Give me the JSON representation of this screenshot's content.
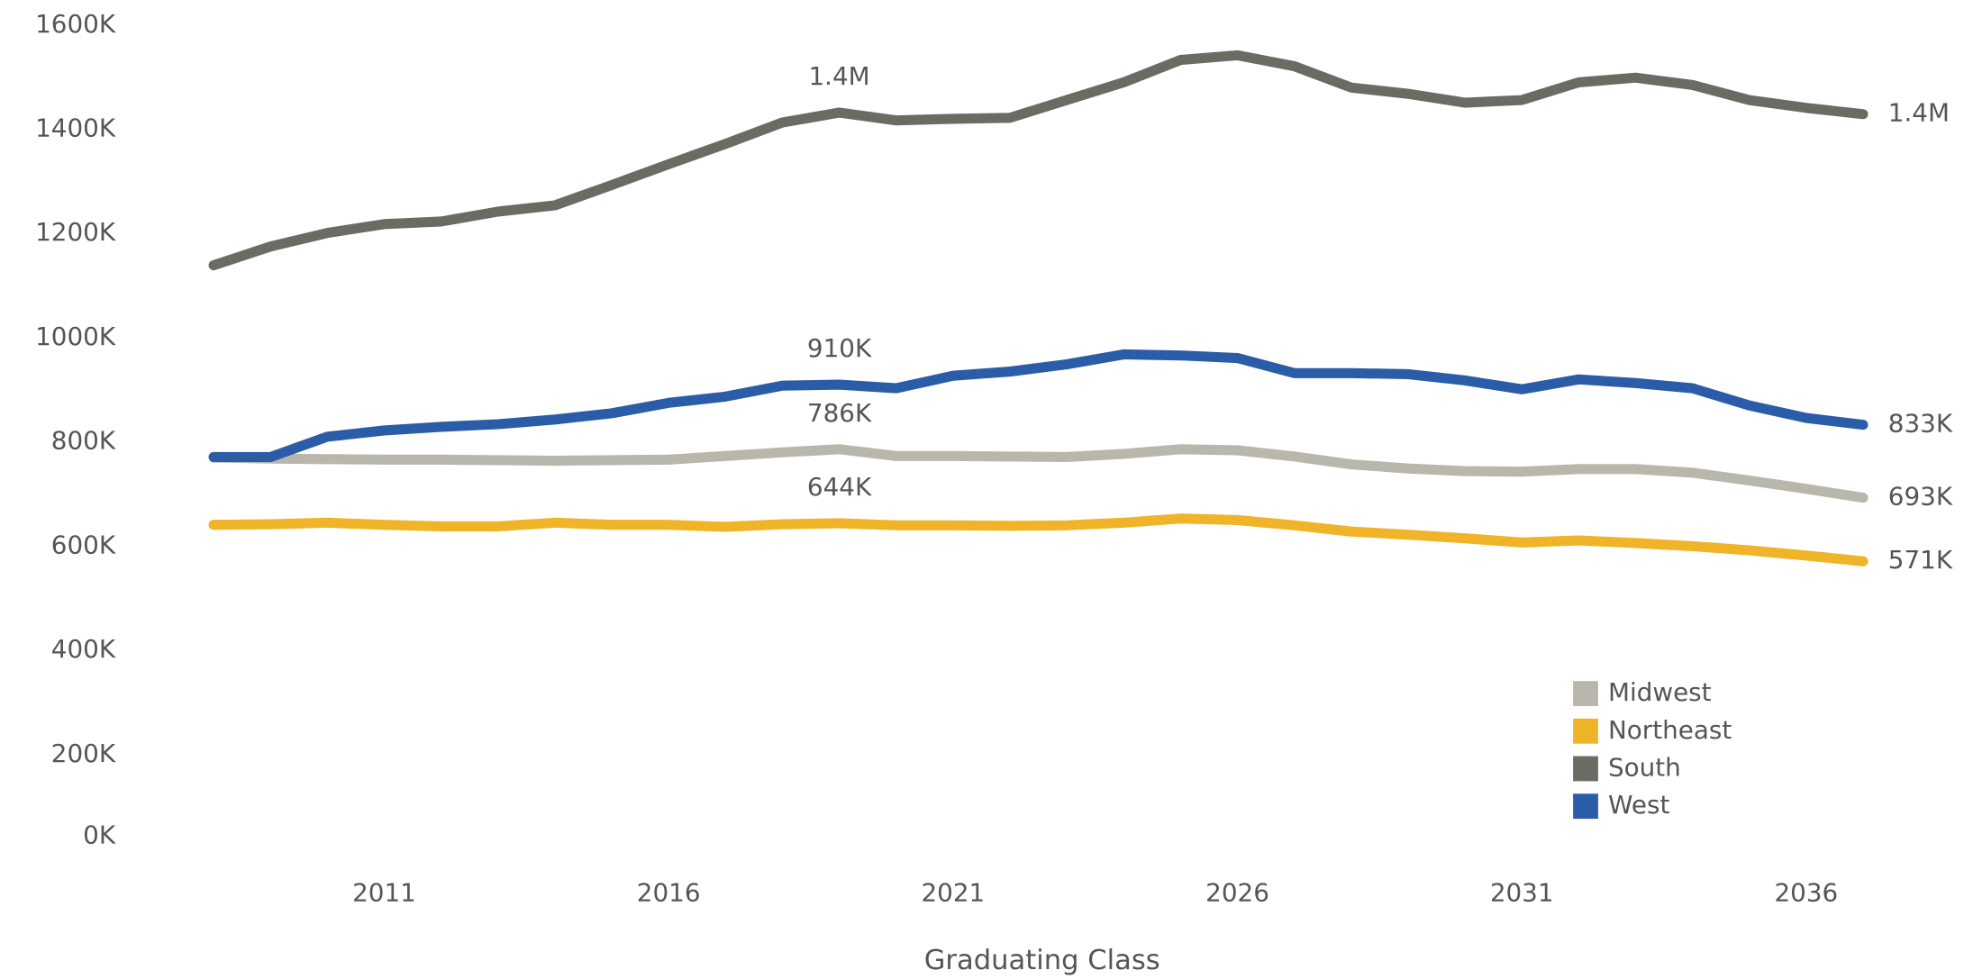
{
  "chart_data": {
    "type": "line",
    "x_label": "Graduating Class",
    "x": [
      2008,
      2009,
      2010,
      2011,
      2012,
      2013,
      2014,
      2015,
      2016,
      2017,
      2018,
      2019,
      2020,
      2021,
      2022,
      2023,
      2024,
      2025,
      2026,
      2027,
      2028,
      2029,
      2030,
      2031,
      2032,
      2033,
      2034,
      2035,
      2036,
      2037
    ],
    "xlim": [
      2007,
      2038
    ],
    "xticks": [
      2011,
      2016,
      2021,
      2026,
      2031,
      2036
    ],
    "ylim": [
      0,
      1600
    ],
    "yticks": [
      {
        "value": 0,
        "label": "0K"
      },
      {
        "value": 200,
        "label": "200K"
      },
      {
        "value": 400,
        "label": "400K"
      },
      {
        "value": 600,
        "label": "600K"
      },
      {
        "value": 800,
        "label": "800K"
      },
      {
        "value": 1000,
        "label": "1000K"
      },
      {
        "value": 1200,
        "label": "1200K"
      },
      {
        "value": 1400,
        "label": "1400K"
      },
      {
        "value": 1600,
        "label": "1600K"
      }
    ],
    "grid": false,
    "legend": "lower right",
    "series": [
      {
        "name": "Midwest",
        "color": "#b9b7ac",
        "values": [
          770,
          768,
          767,
          766,
          766,
          765,
          764,
          765,
          766,
          773,
          780,
          786,
          773,
          773,
          772,
          771,
          777,
          786,
          784,
          772,
          757,
          749,
          744,
          743,
          748,
          748,
          741,
          726,
          710,
          693
        ],
        "value_labels": [
          null,
          null,
          null,
          null,
          null,
          null,
          null,
          null,
          null,
          null,
          null,
          "786K",
          null,
          null,
          null,
          null,
          null,
          null,
          null,
          null,
          null,
          null,
          null,
          null,
          null,
          null,
          null,
          null,
          null,
          "693K"
        ]
      },
      {
        "name": "Northeast",
        "color": "#f0b428",
        "values": [
          641,
          642,
          645,
          641,
          638,
          638,
          645,
          641,
          641,
          637,
          642,
          644,
          640,
          640,
          639,
          640,
          645,
          653,
          650,
          640,
          628,
          622,
          615,
          607,
          611,
          606,
          600,
          592,
          582,
          571
        ],
        "value_labels": [
          null,
          null,
          null,
          null,
          null,
          null,
          null,
          null,
          null,
          null,
          null,
          "644K",
          null,
          null,
          null,
          null,
          null,
          null,
          null,
          null,
          null,
          null,
          null,
          null,
          null,
          null,
          null,
          null,
          null,
          "571K"
        ]
      },
      {
        "name": "South",
        "color": "#6b6b63",
        "values": [
          1139,
          1175,
          1201,
          1218,
          1223,
          1242,
          1254,
          1293,
          1333,
          1372,
          1413,
          1432,
          1417,
          1420,
          1422,
          1456,
          1490,
          1533,
          1542,
          1521,
          1480,
          1468,
          1451,
          1456,
          1490,
          1499,
          1485,
          1456,
          1441,
          1429
        ],
        "value_labels": [
          null,
          null,
          null,
          null,
          null,
          null,
          null,
          null,
          null,
          null,
          null,
          "1.4M",
          null,
          null,
          null,
          null,
          null,
          null,
          null,
          null,
          null,
          null,
          null,
          null,
          null,
          null,
          null,
          null,
          null,
          "1.4M"
        ]
      },
      {
        "name": "West",
        "color": "#2a5ca8",
        "values": [
          771,
          771,
          810,
          822,
          829,
          834,
          843,
          855,
          875,
          887,
          908,
          910,
          903,
          927,
          935,
          949,
          968,
          966,
          961,
          932,
          932,
          930,
          918,
          901,
          920,
          913,
          903,
          870,
          846,
          833
        ],
        "value_labels": [
          null,
          null,
          null,
          null,
          null,
          null,
          null,
          null,
          null,
          null,
          null,
          "910K",
          null,
          null,
          null,
          null,
          null,
          null,
          null,
          null,
          null,
          null,
          null,
          null,
          null,
          null,
          null,
          null,
          null,
          "833K"
        ]
      }
    ]
  }
}
